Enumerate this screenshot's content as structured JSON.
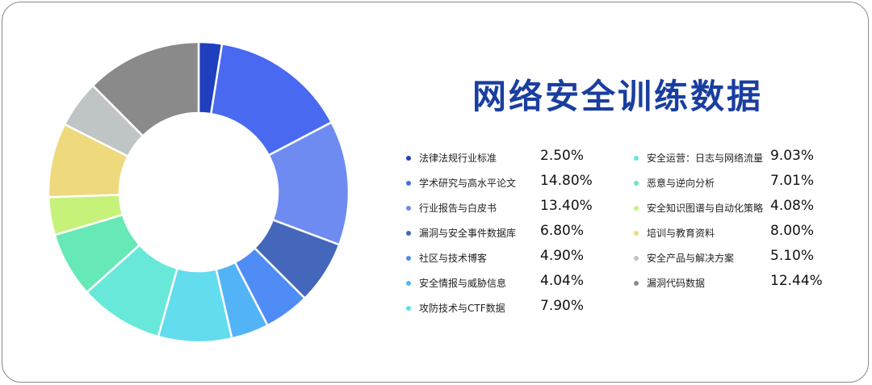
{
  "title": "网络安全训练数据",
  "chart_data": {
    "type": "pie",
    "donut": true,
    "title": "网络安全训练数据",
    "slices": [
      {
        "label": "法律法规行业标准",
        "value": 2.5,
        "display": "2.50%",
        "color": "#1f3fbe"
      },
      {
        "label": "学术研究与高水平论文",
        "value": 14.8,
        "display": "14.80%",
        "color": "#4a69f1"
      },
      {
        "label": "行业报告与白皮书",
        "value": 13.4,
        "display": "13.40%",
        "color": "#6e8bf1"
      },
      {
        "label": "漏洞与安全事件数据库",
        "value": 6.8,
        "display": "6.80%",
        "color": "#4466bb"
      },
      {
        "label": "社区与技术博客",
        "value": 4.9,
        "display": "4.90%",
        "color": "#4f8cf5"
      },
      {
        "label": "安全情报与威胁信息",
        "value": 4.04,
        "display": "4.04%",
        "color": "#52b4f6"
      },
      {
        "label": "攻防技术与CTF数据",
        "value": 7.9,
        "display": "7.90%",
        "color": "#63dcee"
      },
      {
        "label": "安全运营：日志与网络流量",
        "value": 9.03,
        "display": "9.03%",
        "color": "#68e8d9"
      },
      {
        "label": "恶意与逆向分析",
        "value": 7.01,
        "display": "7.01%",
        "color": "#66e8b7"
      },
      {
        "label": "安全知识图谱与自动化策略",
        "value": 4.08,
        "display": "4.08%",
        "color": "#c6f27a"
      },
      {
        "label": "培训与教育资料",
        "value": 8.0,
        "display": "8.00%",
        "color": "#efd97d"
      },
      {
        "label": "安全产品与解决方案",
        "value": 5.1,
        "display": "5.10%",
        "color": "#bfc5c5"
      },
      {
        "label": "漏洞代码数据",
        "value": 12.44,
        "display": "12.44%",
        "color": "#8a8a8a"
      }
    ],
    "legend_placement": "right"
  }
}
